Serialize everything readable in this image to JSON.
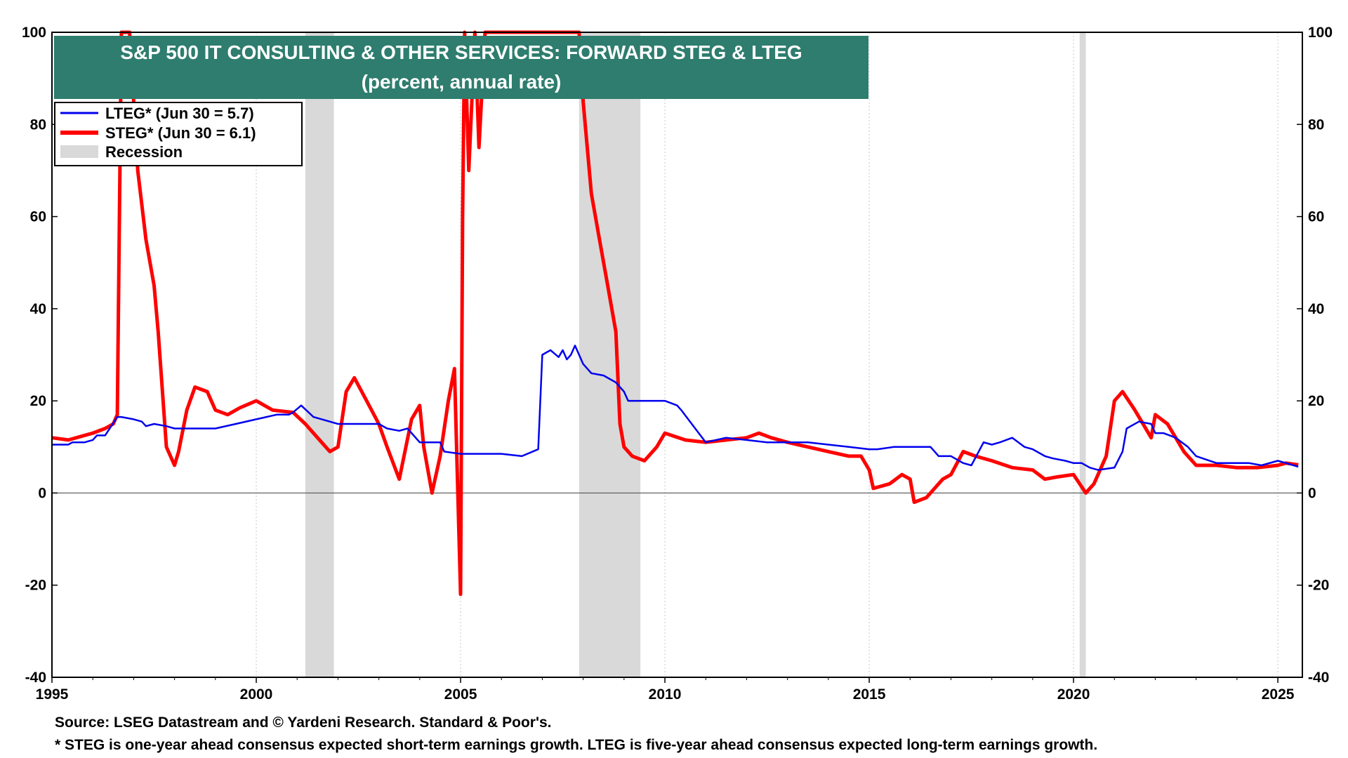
{
  "chart_data": {
    "type": "line",
    "title": "S&P 500 IT CONSULTING & OTHER SERVICES: FORWARD STEG & LTEG",
    "subtitle": "(percent, annual rate)",
    "xlabel": "",
    "ylabel": "",
    "xlim": [
      1995,
      2025.6
    ],
    "ylim": [
      -40,
      100
    ],
    "x_ticks": [
      "1995",
      "2000",
      "2005",
      "2010",
      "2015",
      "2020",
      "2025"
    ],
    "y_ticks": [
      "-40",
      "-20",
      "0",
      "20",
      "40",
      "60",
      "80",
      "100"
    ],
    "grid": "vertical",
    "legend_position": "top-left",
    "legend": [
      {
        "label": "LTEG* (Jun 30 = 5.7)",
        "color": "#0000ee"
      },
      {
        "label": "STEG* (Jun 30 = 6.1)",
        "color": "#ff0000"
      },
      {
        "label": "Recession",
        "color": "#d9d9d9"
      }
    ],
    "recessions": [
      [
        2001.2,
        2001.9
      ],
      [
        2007.9,
        2009.4
      ],
      [
        2020.15,
        2020.3
      ]
    ],
    "series": [
      {
        "name": "LTEG* (Jun 30 = 5.7)",
        "color": "#0000ee",
        "x": [
          1995.0,
          1995.4,
          1995.5,
          1995.8,
          1996.0,
          1996.1,
          1996.3,
          1996.6,
          1996.7,
          1997.0,
          1997.2,
          1997.3,
          1997.5,
          1997.8,
          1998.0,
          1998.5,
          1999.0,
          1999.5,
          2000.0,
          2000.5,
          2000.8,
          2000.9,
          2001.1,
          2001.4,
          2001.8,
          2002.0,
          2002.5,
          2003.0,
          2003.2,
          2003.5,
          2003.7,
          2004.0,
          2004.5,
          2004.6,
          2005.0,
          2005.5,
          2006.0,
          2006.5,
          2006.9,
          2007.0,
          2007.2,
          2007.4,
          2007.5,
          2007.6,
          2007.7,
          2007.8,
          2008.0,
          2008.2,
          2008.5,
          2008.8,
          2009.0,
          2009.1,
          2009.5,
          2010.0,
          2010.3,
          2010.4,
          2011.0,
          2011.5,
          2012.0,
          2012.5,
          2013.0,
          2013.5,
          2014.0,
          2014.5,
          2015.0,
          2015.2,
          2015.6,
          2016.0,
          2016.5,
          2016.7,
          2017.0,
          2017.3,
          2017.5,
          2017.8,
          2018.0,
          2018.2,
          2018.5,
          2018.8,
          2019.0,
          2019.3,
          2019.5,
          2019.8,
          2020.0,
          2020.2,
          2020.4,
          2020.6,
          2021.0,
          2021.2,
          2021.3,
          2021.6,
          2021.9,
          2022.0,
          2022.2,
          2022.5,
          2022.8,
          2023.0,
          2023.5,
          2024.0,
          2024.3,
          2024.6,
          2025.0,
          2025.2,
          2025.5
        ],
        "values": [
          10.5,
          10.5,
          11,
          11,
          11.5,
          12.5,
          12.5,
          16.5,
          16.5,
          16,
          15.5,
          14.5,
          15,
          14.5,
          14,
          14,
          14,
          15,
          16,
          17,
          17,
          17.5,
          19,
          16.5,
          15.5,
          15,
          15,
          15,
          14,
          13.5,
          14,
          11,
          11,
          9,
          8.5,
          8.5,
          8.5,
          8,
          9.5,
          30,
          31,
          29.5,
          31,
          29,
          30,
          32,
          28,
          26,
          25.5,
          24,
          22,
          20,
          20,
          20,
          19,
          18,
          11,
          12,
          11.5,
          11,
          11,
          11,
          10.5,
          10,
          9.5,
          9.5,
          10,
          10,
          10,
          8,
          8,
          6.5,
          6,
          11,
          10.5,
          11,
          12,
          10,
          9.5,
          8,
          7.5,
          7,
          6.5,
          6.5,
          5.5,
          5,
          5.5,
          9,
          14,
          15.5,
          15,
          13,
          13,
          12,
          10,
          8,
          6.5,
          6.5,
          6.5,
          6,
          7,
          6.5,
          5.7
        ]
      },
      {
        "name": "STEG* (Jun 30 = 6.1)",
        "color": "#ff0000",
        "x": [
          1995.0,
          1995.4,
          1996.0,
          1996.3,
          1996.5,
          1996.6,
          1996.7,
          1996.9,
          1997.1,
          1997.3,
          1997.5,
          1997.6,
          1997.8,
          1998.0,
          1998.1,
          1998.3,
          1998.5,
          1998.8,
          1999.0,
          1999.3,
          1999.6,
          2000.0,
          2000.4,
          2000.9,
          2001.2,
          2001.5,
          2001.8,
          2002.0,
          2002.2,
          2002.4,
          2002.7,
          2003.0,
          2003.2,
          2003.5,
          2003.8,
          2004.0,
          2004.1,
          2004.3,
          2004.5,
          2004.7,
          2004.85,
          2005.0,
          2005.05,
          2005.1,
          2005.2,
          2005.35,
          2005.45,
          2005.6,
          2007.9,
          2008.0,
          2008.2,
          2008.4,
          2008.6,
          2008.8,
          2008.9,
          2009.0,
          2009.2,
          2009.5,
          2009.8,
          2010.0,
          2010.5,
          2011.0,
          2011.5,
          2012.0,
          2012.3,
          2012.6,
          2013.0,
          2013.5,
          2014.0,
          2014.5,
          2014.8,
          2015.0,
          2015.1,
          2015.5,
          2015.8,
          2016.0,
          2016.1,
          2016.4,
          2016.8,
          2017.0,
          2017.3,
          2017.6,
          2018.0,
          2018.5,
          2019.0,
          2019.3,
          2019.6,
          2020.0,
          2020.3,
          2020.5,
          2020.8,
          2021.0,
          2021.2,
          2021.5,
          2021.9,
          2022.0,
          2022.3,
          2022.5,
          2022.7,
          2023.0,
          2023.5,
          2024.0,
          2024.5,
          2025.0,
          2025.2,
          2025.5
        ],
        "values": [
          12,
          11.5,
          13,
          14,
          15,
          17,
          100,
          100,
          70,
          55,
          45,
          35,
          10,
          6,
          9,
          18,
          23,
          22,
          18,
          17,
          18.5,
          20,
          18,
          17.5,
          15,
          12,
          9,
          10,
          22,
          25,
          20,
          15,
          10,
          3,
          16,
          19,
          10,
          0,
          8,
          20,
          27,
          -22,
          60,
          100,
          70,
          100,
          75,
          100,
          100,
          85,
          65,
          55,
          45,
          35,
          15,
          10,
          8,
          7,
          10,
          13,
          11.5,
          11,
          11.5,
          12,
          13,
          12,
          11,
          10,
          9,
          8,
          8,
          5,
          1,
          2,
          4,
          3,
          -2,
          -1,
          3,
          4,
          9,
          8,
          7,
          5.5,
          5,
          3,
          3.5,
          4,
          0,
          2,
          8,
          20,
          22,
          18,
          12,
          17,
          15,
          12,
          9,
          6,
          6,
          5.5,
          5.5,
          6,
          6.5,
          6.1
        ]
      }
    ]
  },
  "footer": {
    "source": "Source: LSEG Datastream and © Yardeni Research. Standard & Poor's.",
    "note": "* STEG is one-year ahead consensus expected short-term earnings growth. LTEG is five-year ahead consensus expected long-term earnings growth."
  }
}
